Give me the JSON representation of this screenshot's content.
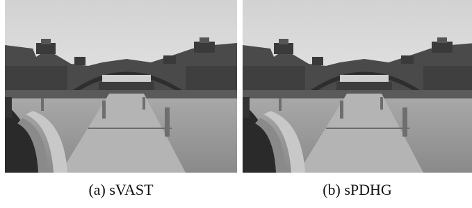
{
  "figures": [
    {
      "caption": "(a) sVAST"
    },
    {
      "caption": "(b) sPDHG"
    }
  ]
}
